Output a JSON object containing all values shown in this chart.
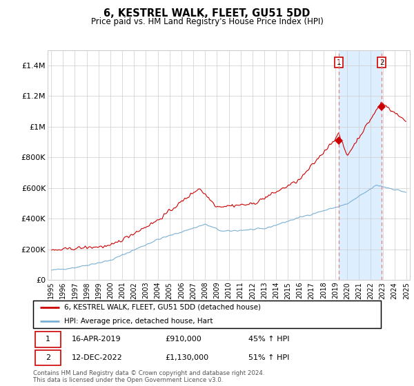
{
  "title": "6, KESTREL WALK, FLEET, GU51 5DD",
  "subtitle": "Price paid vs. HM Land Registry's House Price Index (HPI)",
  "legend_line1": "6, KESTREL WALK, FLEET, GU51 5DD (detached house)",
  "legend_line2": "HPI: Average price, detached house, Hart",
  "annotation1_label": "1",
  "annotation1_date": "16-APR-2019",
  "annotation1_price": "£910,000",
  "annotation1_hpi": "45% ↑ HPI",
  "annotation1_year": 2019.29,
  "annotation1_value": 910000,
  "annotation2_label": "2",
  "annotation2_date": "12-DEC-2022",
  "annotation2_price": "£1,130,000",
  "annotation2_hpi": "51% ↑ HPI",
  "annotation2_year": 2022.92,
  "annotation2_value": 1130000,
  "footer": "Contains HM Land Registry data © Crown copyright and database right 2024.\nThis data is licensed under the Open Government Licence v3.0.",
  "red_color": "#cc0000",
  "blue_color": "#7ab0d4",
  "shaded_color": "#ddeeff",
  "dashed_color": "#e08080",
  "grid_color": "#cccccc",
  "background_color": "#ffffff",
  "xlim": [
    1994.7,
    2025.3
  ],
  "ylim": [
    0,
    1500000
  ],
  "yticks": [
    0,
    200000,
    400000,
    600000,
    800000,
    1000000,
    1200000,
    1400000
  ],
  "ytick_labels": [
    "£0",
    "£200K",
    "£400K",
    "£600K",
    "£800K",
    "£1M",
    "£1.2M",
    "£1.4M"
  ],
  "xtick_years": [
    1995,
    1996,
    1997,
    1998,
    1999,
    2000,
    2001,
    2002,
    2003,
    2004,
    2005,
    2006,
    2007,
    2008,
    2009,
    2010,
    2011,
    2012,
    2013,
    2014,
    2015,
    2016,
    2017,
    2018,
    2019,
    2020,
    2021,
    2022,
    2023,
    2024,
    2025
  ]
}
